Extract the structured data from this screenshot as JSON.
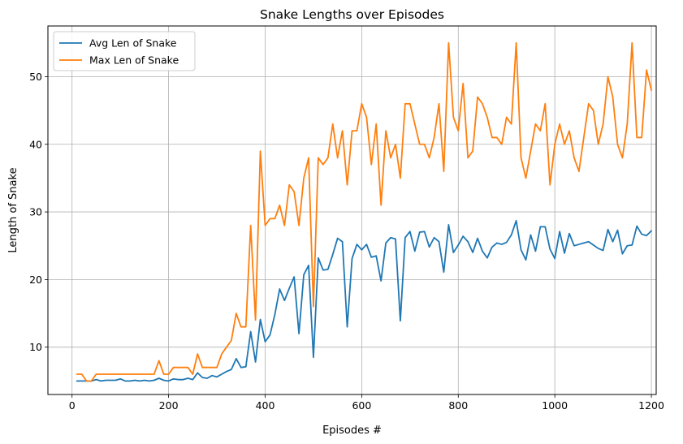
{
  "chart_data": {
    "type": "line",
    "title": "Snake Lengths over Episodes",
    "xlabel": "Episodes #",
    "ylabel": "Length of Snake",
    "xlim": [
      -50,
      1210
    ],
    "ylim": [
      3,
      57.5
    ],
    "xticks": [
      0,
      200,
      400,
      600,
      800,
      1000,
      1200
    ],
    "yticks": [
      10,
      20,
      30,
      40,
      50
    ],
    "grid": true,
    "legend": "top-left",
    "x": [
      10,
      20,
      30,
      40,
      50,
      60,
      70,
      80,
      90,
      100,
      110,
      120,
      130,
      140,
      150,
      160,
      170,
      180,
      190,
      200,
      210,
      220,
      230,
      240,
      250,
      260,
      270,
      280,
      290,
      300,
      310,
      320,
      330,
      340,
      350,
      360,
      370,
      380,
      390,
      400,
      410,
      420,
      430,
      440,
      450,
      460,
      470,
      480,
      490,
      500,
      510,
      520,
      530,
      540,
      550,
      560,
      570,
      580,
      590,
      600,
      610,
      620,
      630,
      640,
      650,
      660,
      670,
      680,
      690,
      700,
      710,
      720,
      730,
      740,
      750,
      760,
      770,
      780,
      790,
      800,
      810,
      820,
      830,
      840,
      850,
      860,
      870,
      880,
      890,
      900,
      910,
      920,
      930,
      940,
      950,
      960,
      970,
      980,
      990,
      1000,
      1010,
      1020,
      1030,
      1040,
      1050,
      1060,
      1070,
      1080,
      1090,
      1100,
      1110,
      1120,
      1130,
      1140,
      1150,
      1160,
      1170,
      1180,
      1190,
      1200
    ],
    "series": [
      {
        "name": "Avg Len of Snake",
        "color": "#1f77b4",
        "values": [
          5.0,
          5.0,
          5.0,
          5.0,
          5.2,
          5.0,
          5.1,
          5.1,
          5.1,
          5.3,
          5.0,
          5.0,
          5.1,
          5.0,
          5.1,
          5.0,
          5.1,
          5.4,
          5.1,
          5.0,
          5.3,
          5.2,
          5.2,
          5.4,
          5.2,
          6.2,
          5.5,
          5.4,
          5.8,
          5.6,
          6.0,
          6.4,
          6.7,
          8.3,
          7.0,
          7.1,
          12.3,
          7.8,
          14.1,
          10.8,
          11.8,
          14.8,
          18.6,
          16.9,
          18.7,
          20.4,
          12.0,
          20.7,
          22.1,
          8.5,
          23.2,
          21.4,
          21.5,
          23.7,
          26.1,
          25.6,
          13.0,
          23.1,
          25.2,
          24.4,
          25.2,
          23.3,
          23.5,
          19.8,
          25.4,
          26.2,
          26.0,
          13.9,
          26.2,
          27.1,
          24.2,
          27.0,
          27.1,
          24.8,
          26.2,
          25.6,
          21.1,
          28.1,
          24.0,
          25.1,
          26.4,
          25.6,
          24.0,
          26.1,
          24.2,
          23.2,
          24.8,
          25.4,
          25.2,
          25.5,
          26.6,
          28.7,
          24.4,
          22.9,
          26.6,
          24.2,
          27.8,
          27.8,
          24.5,
          23.1,
          27.1,
          23.9,
          26.8,
          25.0,
          25.2,
          25.4,
          25.6,
          25.1,
          24.6,
          24.3,
          27.4,
          25.6,
          27.3,
          23.8,
          25.0,
          25.1,
          27.9,
          26.7,
          26.5,
          27.2
        ]
      },
      {
        "name": "Max Len of Snake",
        "color": "#ff7f0e",
        "values": [
          6,
          6,
          5,
          5,
          6,
          6,
          6,
          6,
          6,
          6,
          6,
          6,
          6,
          6,
          6,
          6,
          6,
          8,
          6,
          6,
          7,
          7,
          7,
          7,
          6,
          9,
          7,
          7,
          7,
          7,
          9,
          10,
          11,
          15,
          13,
          13,
          28,
          14,
          39,
          28,
          29,
          29,
          31,
          28,
          34,
          33,
          28,
          35,
          38,
          16,
          38,
          37,
          38,
          43,
          38,
          42,
          34,
          42,
          42,
          46,
          44,
          37,
          43,
          31,
          42,
          38,
          40,
          35,
          46,
          46,
          43,
          40,
          40,
          38,
          41,
          46,
          36,
          55,
          44,
          42,
          49,
          38,
          39,
          47,
          46,
          44,
          41,
          41,
          40,
          44,
          43,
          55,
          38,
          35,
          39,
          43,
          42,
          46,
          34,
          40,
          43,
          40,
          42,
          38,
          36,
          41,
          46,
          45,
          40,
          43,
          50,
          47,
          40,
          38,
          43,
          55,
          41,
          41,
          51,
          48
        ]
      }
    ]
  }
}
